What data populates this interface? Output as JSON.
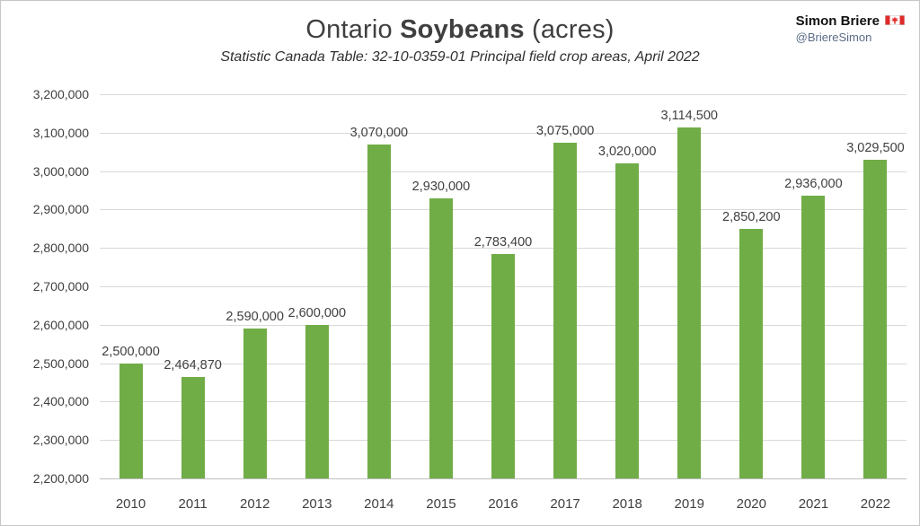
{
  "header": {
    "title_prefix": "Ontario ",
    "title_bold": "Soybeans",
    "title_suffix": " (acres)",
    "subtitle": "Statistic Canada Table: 32-10-0359-01 Principal field crop areas, April 2022",
    "author": "Simon Briere",
    "handle": "@BriereSimon",
    "flag_icon": "canada-flag-icon"
  },
  "chart_data": {
    "type": "bar",
    "title": "Ontario Soybeans (acres)",
    "subtitle": "Statistic Canada Table: 32-10-0359-01 Principal field crop areas, April 2022",
    "categories": [
      "2010",
      "2011",
      "2012",
      "2013",
      "2014",
      "2015",
      "2016",
      "2017",
      "2018",
      "2019",
      "2020",
      "2021",
      "2022"
    ],
    "values": [
      2500000,
      2464870,
      2590000,
      2600000,
      3070000,
      2930000,
      2783400,
      3075000,
      3020000,
      3114500,
      2850200,
      2936000,
      3029500
    ],
    "value_labels": [
      "2,500,000",
      "2,464,870",
      "2,590,000",
      "2,600,000",
      "3,070,000",
      "2,930,000",
      "2,783,400",
      "3,075,000",
      "3,020,000",
      "3,114,500",
      "2,850,200",
      "2,936,000",
      "3,029,500"
    ],
    "xlabel": "",
    "ylabel": "",
    "ylim": [
      2200000,
      3200000
    ],
    "ytick_interval": 100000,
    "yticks": [
      "3,200,000",
      "3,100,000",
      "3,000,000",
      "2,900,000",
      "2,800,000",
      "2,700,000",
      "2,600,000",
      "2,500,000",
      "2,400,000",
      "2,300,000",
      "2,200,000"
    ],
    "bar_color": "#70AD47",
    "grid": true,
    "legend_position": "none",
    "colors": {
      "bar": "#70AD47",
      "gridline": "#d9d9d9",
      "text": "#404040"
    }
  }
}
